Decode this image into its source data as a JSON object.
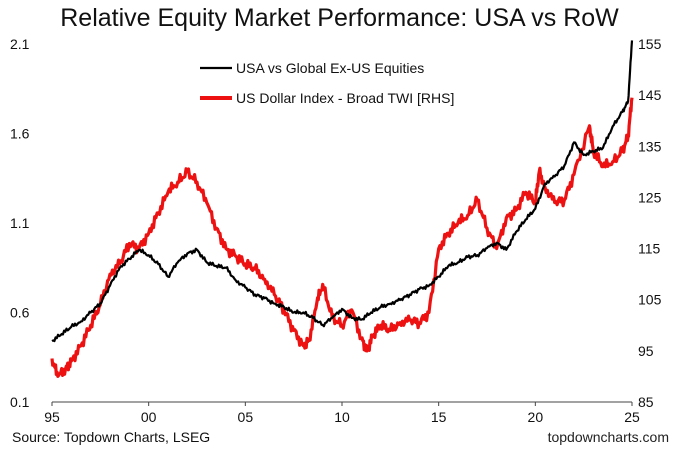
{
  "chart_data": {
    "type": "line",
    "title": "Relative Equity Market Performance: USA vs RoW",
    "source": "Source: Topdown Charts, LSEG",
    "watermark": "topdowncharts.com",
    "x_ticks": [
      "95",
      "00",
      "05",
      "10",
      "15",
      "20",
      "25"
    ],
    "x_tick_years": [
      1995,
      2000,
      2005,
      2010,
      2015,
      2020,
      2025
    ],
    "xlim": [
      1995,
      2025
    ],
    "y_left": {
      "ticks": [
        "0.1",
        "0.6",
        "1.1",
        "1.6",
        "2.1"
      ],
      "tick_values": [
        0.1,
        0.6,
        1.1,
        1.6,
        2.1
      ],
      "lim": [
        0.1,
        2.1
      ]
    },
    "y_right": {
      "ticks": [
        "85",
        "95",
        "105",
        "115",
        "125",
        "135",
        "145",
        "155"
      ],
      "tick_values": [
        85,
        95,
        105,
        115,
        125,
        135,
        145,
        155
      ],
      "lim": [
        85,
        155
      ]
    },
    "legend_position": "top-right",
    "series": [
      {
        "name": "USA vs Global Ex-US Equities",
        "axis": "left",
        "color": "#000000",
        "x": [
          1995.0,
          1995.5,
          1996.0,
          1996.5,
          1997.0,
          1997.5,
          1998.0,
          1998.5,
          1999.0,
          1999.5,
          2000.0,
          2000.5,
          2001.0,
          2001.5,
          2002.0,
          2002.5,
          2003.0,
          2003.5,
          2004.0,
          2004.5,
          2005.0,
          2005.5,
          2006.0,
          2006.5,
          2007.0,
          2007.5,
          2008.0,
          2008.5,
          2009.0,
          2009.5,
          2010.0,
          2010.5,
          2011.0,
          2011.5,
          2012.0,
          2012.5,
          2013.0,
          2013.5,
          2014.0,
          2014.5,
          2015.0,
          2015.5,
          2016.0,
          2016.5,
          2017.0,
          2017.5,
          2018.0,
          2018.5,
          2019.0,
          2019.5,
          2020.0,
          2020.5,
          2021.0,
          2021.5,
          2022.0,
          2022.5,
          2023.0,
          2023.5,
          2024.0,
          2024.5,
          2024.8,
          2025.0
        ],
        "y": [
          0.44,
          0.48,
          0.52,
          0.55,
          0.6,
          0.65,
          0.75,
          0.85,
          0.9,
          0.95,
          0.92,
          0.87,
          0.8,
          0.88,
          0.93,
          0.95,
          0.88,
          0.86,
          0.85,
          0.78,
          0.74,
          0.7,
          0.68,
          0.65,
          0.63,
          0.6,
          0.6,
          0.57,
          0.53,
          0.57,
          0.62,
          0.57,
          0.56,
          0.6,
          0.63,
          0.65,
          0.67,
          0.7,
          0.73,
          0.75,
          0.8,
          0.86,
          0.88,
          0.91,
          0.92,
          0.96,
          0.99,
          0.95,
          1.05,
          1.12,
          1.18,
          1.32,
          1.36,
          1.42,
          1.55,
          1.48,
          1.5,
          1.52,
          1.64,
          1.72,
          1.78,
          2.12
        ]
      },
      {
        "name": "US Dollar Index - Broad TWI [RHS]",
        "axis": "right",
        "color": "#ee1111",
        "x": [
          1995.0,
          1995.3,
          1995.7,
          1996.0,
          1996.5,
          1997.0,
          1997.5,
          1998.0,
          1998.5,
          1999.0,
          1999.5,
          2000.0,
          2000.5,
          2001.0,
          2001.5,
          2002.0,
          2002.5,
          2003.0,
          2003.5,
          2004.0,
          2004.5,
          2005.0,
          2005.5,
          2006.0,
          2006.5,
          2007.0,
          2007.5,
          2008.0,
          2008.3,
          2008.7,
          2009.0,
          2009.5,
          2010.0,
          2010.5,
          2011.0,
          2011.3,
          2011.6,
          2012.0,
          2012.5,
          2013.0,
          2013.5,
          2014.0,
          2014.5,
          2015.0,
          2015.5,
          2016.0,
          2016.5,
          2017.0,
          2017.5,
          2018.0,
          2018.5,
          2019.0,
          2019.5,
          2020.0,
          2020.2,
          2020.5,
          2021.0,
          2021.5,
          2022.0,
          2022.8,
          2023.0,
          2023.5,
          2024.0,
          2024.5,
          2024.8,
          2025.0
        ],
        "y": [
          93.5,
          90.0,
          91.5,
          93.0,
          96.0,
          100.0,
          104.0,
          110.0,
          112.0,
          116.0,
          115.0,
          118.0,
          122.0,
          126.0,
          128.0,
          130.0,
          128.0,
          124.0,
          119.0,
          115.0,
          113.5,
          112.0,
          111.0,
          109.0,
          106.0,
          103.0,
          99.0,
          96.0,
          97.0,
          104.5,
          108.0,
          101.5,
          100.0,
          103.0,
          97.5,
          95.0,
          98.0,
          100.0,
          99.0,
          100.5,
          101.0,
          100.5,
          102.5,
          115.0,
          118.0,
          120.0,
          121.5,
          124.5,
          119.0,
          115.0,
          121.0,
          122.5,
          126.0,
          124.0,
          130.0,
          127.0,
          124.0,
          124.5,
          129.5,
          139.0,
          134.0,
          131.0,
          132.0,
          134.0,
          137.0,
          144.5
        ]
      }
    ]
  }
}
